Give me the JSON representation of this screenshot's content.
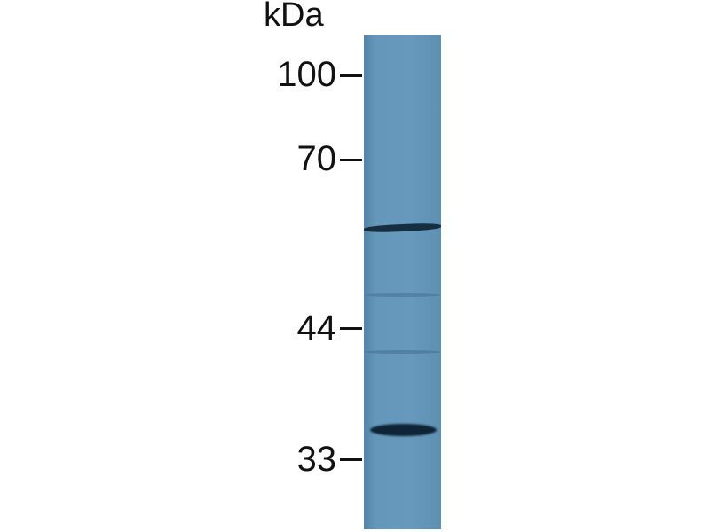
{
  "unit_label": "kDa",
  "markers": [
    {
      "label": "100"
    },
    {
      "label": "70"
    },
    {
      "label": "44"
    },
    {
      "label": "33"
    }
  ],
  "colors": {
    "membrane": "#6497b9",
    "band": "#0f2436",
    "text": "#111111"
  }
}
